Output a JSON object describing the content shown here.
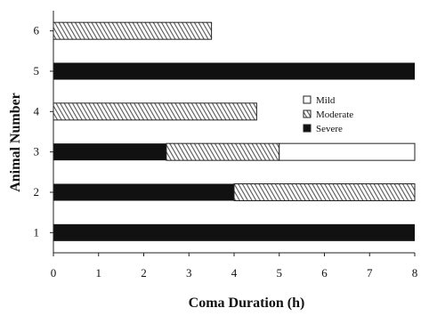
{
  "chart_data": {
    "type": "bar",
    "orientation": "horizontal",
    "stacked": true,
    "xlabel": "Coma Duration (h)",
    "ylabel": "Animal Number",
    "xlim": [
      0,
      8
    ],
    "x_ticks": [
      "0",
      "1",
      "2",
      "3",
      "4",
      "5",
      "6",
      "7",
      "8"
    ],
    "categories": [
      "1",
      "2",
      "3",
      "4",
      "5",
      "6"
    ],
    "series": [
      {
        "name": "Severe",
        "pattern": "solid",
        "color": "#111111",
        "values": [
          8,
          4,
          2.5,
          0,
          8,
          0
        ]
      },
      {
        "name": "Moderate",
        "pattern": "hatched",
        "color": "#8a8a8a",
        "values": [
          0,
          4,
          2.5,
          4.5,
          0,
          3.5
        ]
      },
      {
        "name": "Mild",
        "pattern": "open",
        "color": "#ffffff",
        "values": [
          0,
          0,
          3,
          0,
          0,
          0
        ]
      }
    ],
    "legend_order": [
      "Mild",
      "Moderate",
      "Severe"
    ],
    "legend_position": "right-center",
    "grid": false
  }
}
